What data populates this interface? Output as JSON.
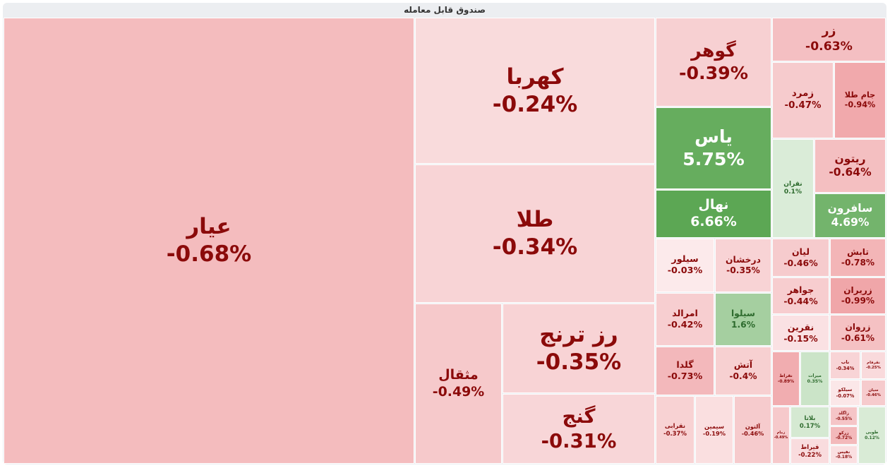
{
  "title": "صندوق قابل معامله",
  "tiles": [
    {
      "name": "عیار",
      "change": -0.68,
      "label": "-0.68%"
    },
    {
      "name": "کهربا",
      "change": -0.24,
      "label": "-0.24%"
    },
    {
      "name": "طلا",
      "change": -0.34,
      "label": "-0.34%"
    },
    {
      "name": "مثقال",
      "change": -0.49,
      "label": "-0.49%"
    },
    {
      "name": "رز ترنج",
      "change": -0.35,
      "label": "-0.35%"
    },
    {
      "name": "گنج",
      "change": -0.31,
      "label": "-0.31%"
    },
    {
      "name": "گوهر",
      "change": -0.39,
      "label": "-0.39%"
    },
    {
      "name": "یاس",
      "change": 5.75,
      "label": "5.75%"
    },
    {
      "name": "نهال",
      "change": 6.66,
      "label": "6.66%"
    },
    {
      "name": "زر",
      "change": -0.63,
      "label": "-0.63%"
    },
    {
      "name": "زمرد",
      "change": -0.47,
      "label": "-0.47%"
    },
    {
      "name": "جام طلا",
      "change": -0.94,
      "label": "-0.94%"
    },
    {
      "name": "نقران",
      "change": 0.1,
      "label": "0.1%"
    },
    {
      "name": "ریتون",
      "change": -0.64,
      "label": "-0.64%"
    },
    {
      "name": "سافرون",
      "change": 4.69,
      "label": "4.69%"
    },
    {
      "name": "سیلور",
      "change": -0.03,
      "label": "-0.03%"
    },
    {
      "name": "درخشان",
      "change": -0.35,
      "label": "-0.35%"
    },
    {
      "name": "امرالد",
      "change": -0.42,
      "label": "-0.42%"
    },
    {
      "name": "سیلوا",
      "change": 1.6,
      "label": "1.6%"
    },
    {
      "name": "گلدا",
      "change": -0.73,
      "label": "-0.73%"
    },
    {
      "name": "آتش",
      "change": -0.4,
      "label": "-0.4%"
    },
    {
      "name": "نقرابی",
      "change": -0.37,
      "label": "-0.37%"
    },
    {
      "name": "سیمین",
      "change": -0.19,
      "label": "-0.19%"
    },
    {
      "name": "آلتون",
      "change": -0.46,
      "label": "-0.46%"
    },
    {
      "name": "لیان",
      "change": -0.46,
      "label": "-0.46%"
    },
    {
      "name": "تابش",
      "change": -0.78,
      "label": "-0.78%"
    },
    {
      "name": "جواهر",
      "change": -0.44,
      "label": "-0.44%"
    },
    {
      "name": "زریران",
      "change": -0.99,
      "label": "-0.99%"
    },
    {
      "name": "نقرین",
      "change": -0.15,
      "label": "-0.15%"
    },
    {
      "name": "زروان",
      "change": -0.61,
      "label": "-0.61%"
    },
    {
      "name": "نقراط",
      "change": -0.89,
      "label": "-0.89%"
    },
    {
      "name": "میرات",
      "change": 0.35,
      "label": "0.35%"
    },
    {
      "name": "ناب",
      "change": -0.34,
      "label": "-0.34%"
    },
    {
      "name": "نقرفام",
      "change": -0.25,
      "label": "-0.25%"
    },
    {
      "name": "سیلکو",
      "change": -0.07,
      "label": "-0.07%"
    },
    {
      "name": "سیان",
      "change": -0.46,
      "label": "-0.46%"
    },
    {
      "name": "زمام",
      "change": -0.49,
      "label": "-0.49%"
    },
    {
      "name": "بلاتا",
      "change": 0.17,
      "label": "0.17%"
    },
    {
      "name": "قیراط",
      "change": -0.22,
      "label": "-0.22%"
    },
    {
      "name": "زاگلد",
      "change": -0.55,
      "label": "-0.55%"
    },
    {
      "name": "زرکو",
      "change": -0.72,
      "label": "-0.72%"
    },
    {
      "name": "نفیس",
      "change": -0.18,
      "label": "-0.18%"
    },
    {
      "name": "طوبی",
      "change": 0.12,
      "label": "0.12%"
    }
  ]
}
